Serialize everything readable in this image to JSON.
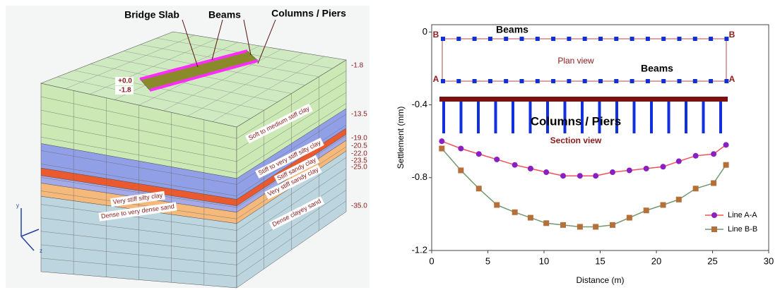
{
  "model": {
    "callouts": [
      "Bridge Slab",
      "Beams",
      "Columns / Piers"
    ],
    "slab_levels": [
      "+0.0",
      "-1.8"
    ],
    "depths": [
      "-1.8",
      "-13.5",
      "-19.0",
      "-20.5",
      "-22.0",
      "-23.5",
      "-25.0",
      "-35.0"
    ],
    "layers": [
      "Soft to medium stiff clay",
      "Stiff to very stiff silty clay",
      "Stiff sandy clay",
      "Very stiff sandy clay",
      "Dense clayey sand",
      "Very stiff silty clay",
      "Dense to very dense sand"
    ],
    "axes": [
      "y",
      "z"
    ]
  },
  "chart_data": {
    "type": "line",
    "x_label": "Distance (m)",
    "y_label": "Settlement (mm)",
    "annotations": [
      "Beams",
      "Plan view",
      "Beams",
      "Section view",
      "Columns / Piers",
      "B",
      "B",
      "A",
      "A"
    ],
    "x": [
      0.9,
      2.6,
      4.2,
      5.8,
      7.4,
      8.8,
      10.2,
      11.7,
      13.2,
      14.6,
      16.1,
      17.6,
      19.1,
      20.6,
      22.0,
      23.5,
      25.1,
      26.2
    ],
    "series": [
      {
        "name": "Line A-A",
        "color": "#f0505a",
        "marker_color": "#8a1fc4",
        "marker": "circle",
        "values": [
          -0.6,
          -0.64,
          -0.67,
          -0.7,
          -0.73,
          -0.75,
          -0.77,
          -0.79,
          -0.79,
          -0.79,
          -0.77,
          -0.76,
          -0.75,
          -0.74,
          -0.71,
          -0.68,
          -0.67,
          -0.62
        ]
      },
      {
        "name": "Line B-B",
        "color": "#6f9a6f",
        "marker_color": "#b5703a",
        "marker": "square",
        "values": [
          -0.64,
          -0.76,
          -0.86,
          -0.95,
          -0.99,
          -1.02,
          -1.05,
          -1.06,
          -1.07,
          -1.07,
          -1.06,
          -1.02,
          -0.98,
          -0.95,
          -0.92,
          -0.86,
          -0.83,
          -0.73
        ]
      }
    ],
    "xlim": [
      0,
      30
    ],
    "xticks": [
      0,
      5,
      10,
      15,
      20,
      25,
      30
    ],
    "ylim": [
      -1.2,
      0.04
    ],
    "yticks": [
      0,
      -0.4,
      -0.8,
      -1.2
    ],
    "grid": false,
    "legend": "lower right"
  }
}
